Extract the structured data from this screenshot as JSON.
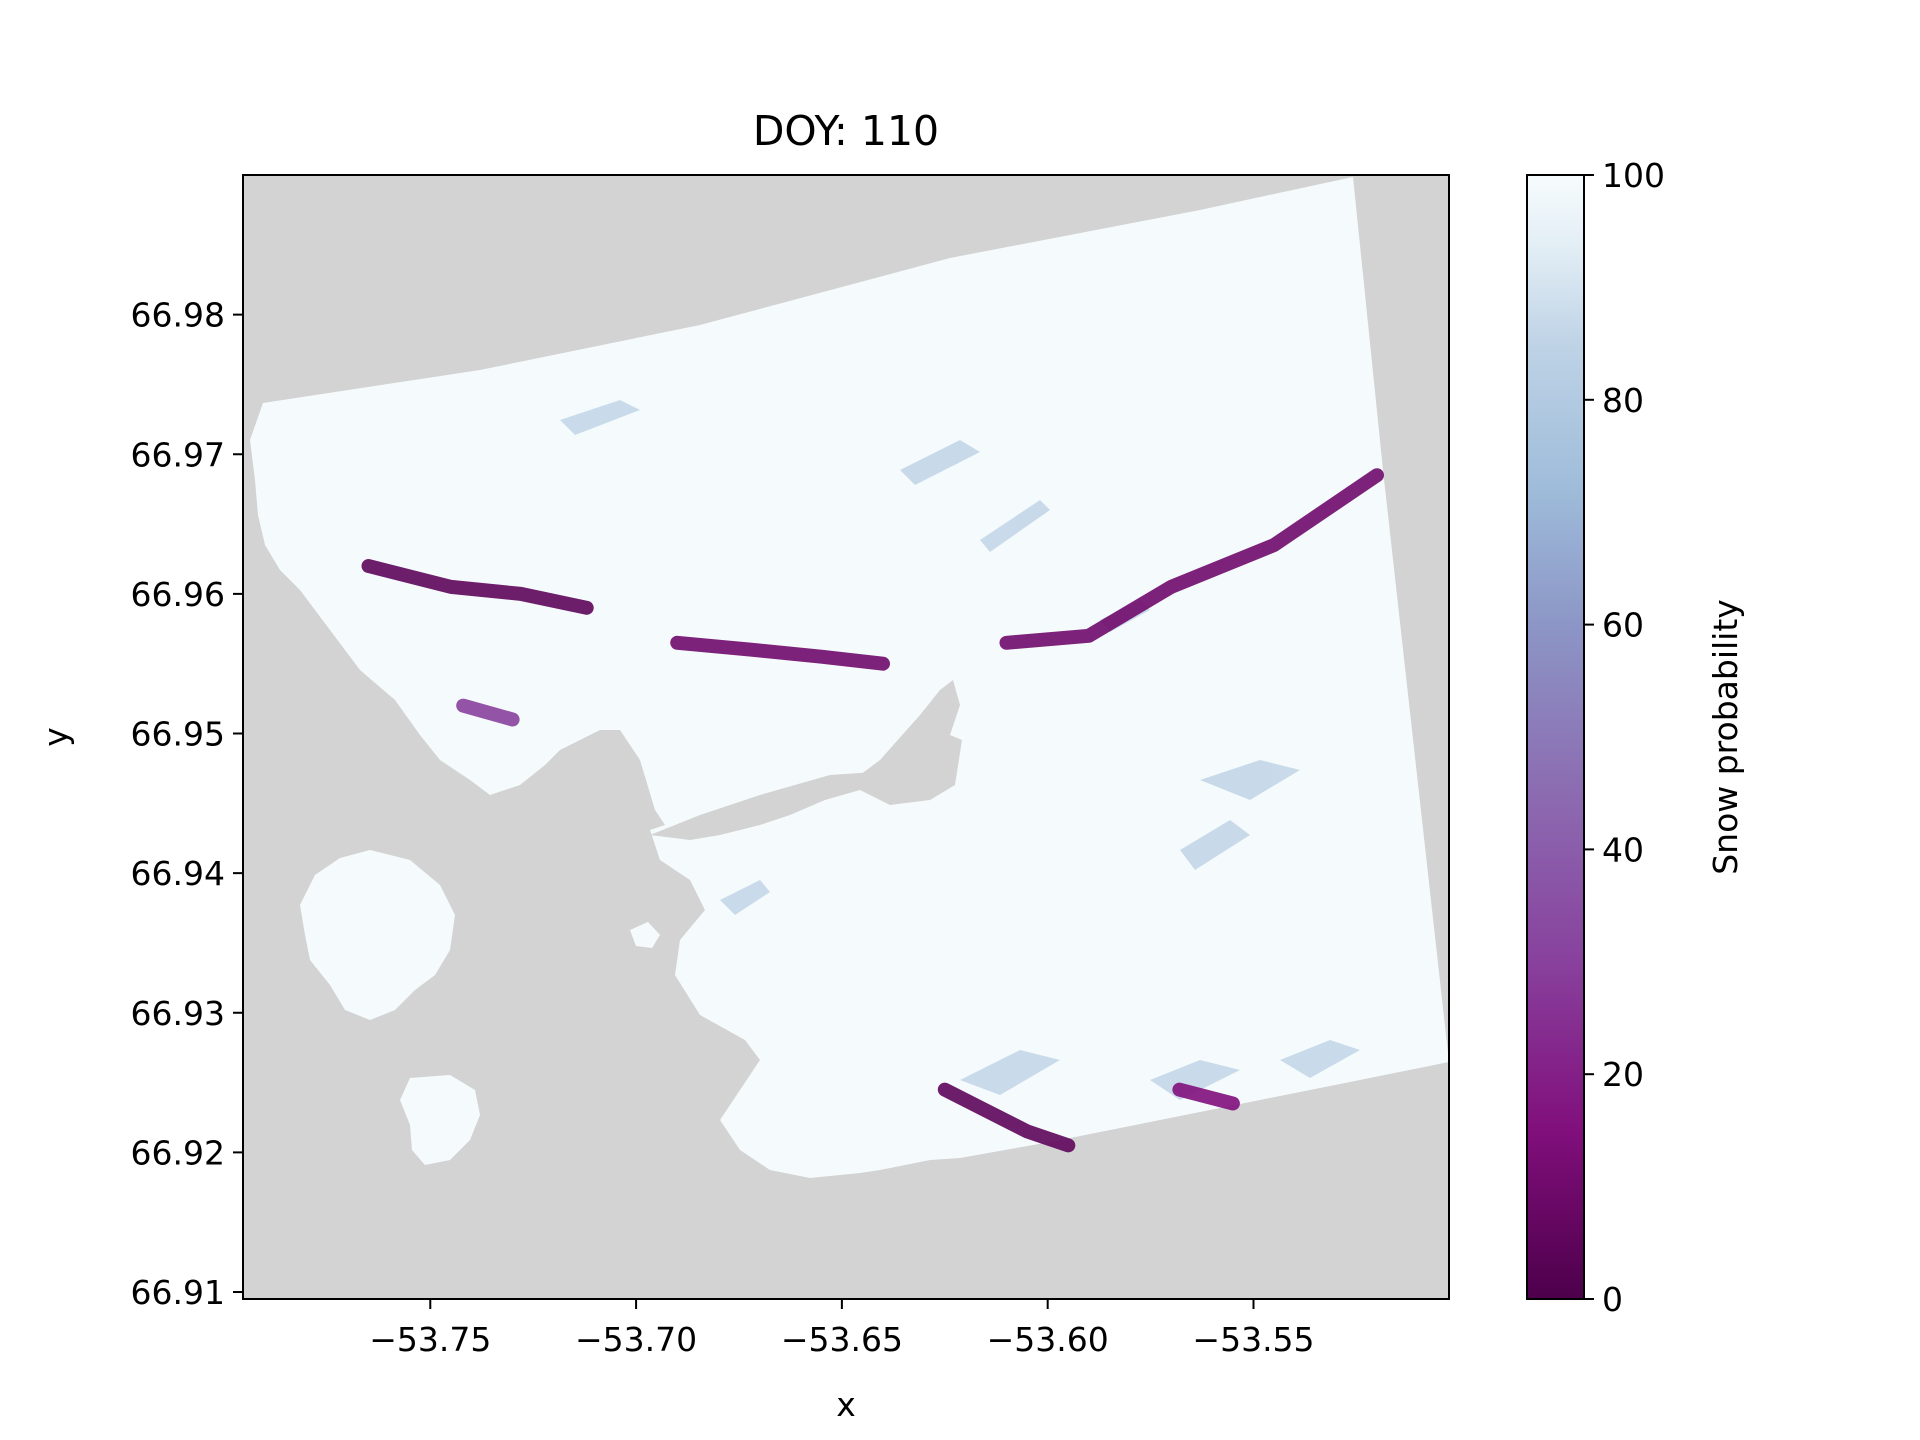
{
  "chart_data": {
    "type": "heatmap",
    "title": "DOY: 110",
    "xlabel": "x",
    "ylabel": "y",
    "xlim": [
      -53.7955,
      -53.5025
    ],
    "ylim": [
      66.9095,
      66.99
    ],
    "xticks": [
      -53.75,
      -53.7,
      -53.65,
      -53.6,
      -53.55
    ],
    "xtick_labels": [
      "−53.75",
      "−53.70",
      "−53.65",
      "−53.60",
      "−53.55"
    ],
    "yticks": [
      66.91,
      66.92,
      66.93,
      66.94,
      66.95,
      66.96,
      66.97,
      66.98
    ],
    "ytick_labels": [
      "66.91",
      "66.92",
      "66.93",
      "66.94",
      "66.95",
      "66.96",
      "66.97",
      "66.98"
    ],
    "colorbar": {
      "label": "Snow probability",
      "range": [
        0,
        100
      ],
      "ticks": [
        0,
        20,
        40,
        60,
        80,
        100
      ],
      "tick_labels": [
        "0",
        "20",
        "40",
        "60",
        "80",
        "100"
      ],
      "colormap_stops": [
        {
          "value": 0,
          "color": "#4d004b"
        },
        {
          "value": 15,
          "color": "#810f7c"
        },
        {
          "value": 30,
          "color": "#88419d"
        },
        {
          "value": 45,
          "color": "#8c6bb1"
        },
        {
          "value": 60,
          "color": "#8c96c6"
        },
        {
          "value": 72,
          "color": "#9ebcda"
        },
        {
          "value": 85,
          "color": "#bfd3e6"
        },
        {
          "value": 93,
          "color": "#e0ecf4"
        },
        {
          "value": 100,
          "color": "#f7fcfd"
        }
      ]
    },
    "nodata_color": "#d3d3d3",
    "grid": false,
    "description_of_field": "Mostly ~100 snow probability over land; low values (0-20) concentrated along ridges",
    "low_probability_ridges": [
      {
        "points": [
          [
            -53.765,
            66.962
          ],
          [
            -53.745,
            66.9605
          ],
          [
            -53.728,
            66.96
          ],
          [
            -53.712,
            66.959
          ]
        ],
        "value": 5
      },
      {
        "points": [
          [
            -53.69,
            66.9565
          ],
          [
            -53.672,
            66.956
          ],
          [
            -53.655,
            66.9555
          ],
          [
            -53.64,
            66.955
          ]
        ],
        "value": 10
      },
      {
        "points": [
          [
            -53.61,
            66.9565
          ],
          [
            -53.59,
            66.957
          ],
          [
            -53.57,
            66.9605
          ],
          [
            -53.545,
            66.9635
          ],
          [
            -53.52,
            66.9685
          ]
        ],
        "value": 10
      },
      {
        "points": [
          [
            -53.625,
            66.9245
          ],
          [
            -53.615,
            66.923
          ],
          [
            -53.605,
            66.9215
          ],
          [
            -53.595,
            66.9205
          ]
        ],
        "value": 5
      },
      {
        "points": [
          [
            -53.568,
            66.9245
          ],
          [
            -53.555,
            66.9235
          ]
        ],
        "value": 15
      },
      {
        "points": [
          [
            -53.742,
            66.952
          ],
          [
            -53.73,
            66.951
          ]
        ],
        "value": 30
      }
    ]
  }
}
